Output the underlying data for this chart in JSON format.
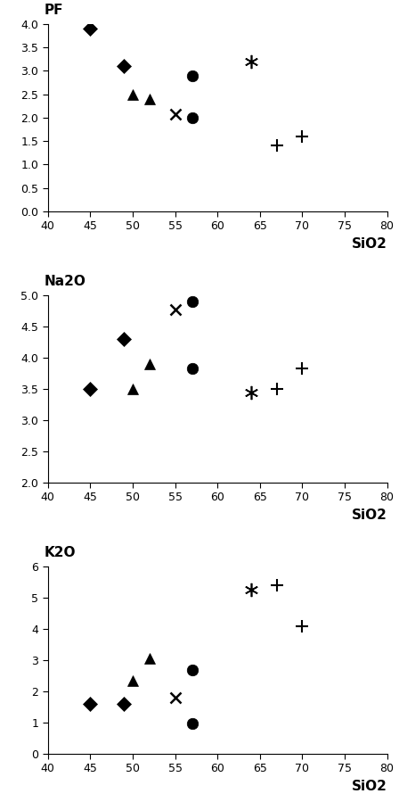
{
  "plots": [
    {
      "ylabel": "PF",
      "xlabel": "SiO2",
      "ylim": [
        0,
        4
      ],
      "xlim": [
        40,
        80
      ],
      "yticks": [
        0,
        0.5,
        1,
        1.5,
        2,
        2.5,
        3,
        3.5,
        4
      ],
      "xticks": [
        40,
        45,
        50,
        55,
        60,
        65,
        70,
        75,
        80
      ],
      "series": [
        {
          "marker": "D",
          "x": [
            45,
            49
          ],
          "y": [
            3.9,
            3.1
          ]
        },
        {
          "marker": "^",
          "x": [
            50,
            52
          ],
          "y": [
            2.5,
            2.4
          ]
        },
        {
          "marker": "o",
          "x": [
            57,
            57
          ],
          "y": [
            2.9,
            2.0
          ]
        },
        {
          "marker": "x",
          "x": [
            55
          ],
          "y": [
            2.07
          ]
        },
        {
          "marker": "ast",
          "x": [
            64
          ],
          "y": [
            3.2
          ]
        },
        {
          "marker": "+",
          "x": [
            67,
            70
          ],
          "y": [
            1.4,
            1.6
          ]
        }
      ]
    },
    {
      "ylabel": "Na2O",
      "xlabel": "SiO2",
      "ylim": [
        2,
        5
      ],
      "xlim": [
        40,
        80
      ],
      "yticks": [
        2,
        2.5,
        3,
        3.5,
        4,
        4.5,
        5
      ],
      "xticks": [
        40,
        45,
        50,
        55,
        60,
        65,
        70,
        75,
        80
      ],
      "series": [
        {
          "marker": "D",
          "x": [
            45,
            49
          ],
          "y": [
            3.5,
            4.3
          ]
        },
        {
          "marker": "^",
          "x": [
            50,
            52
          ],
          "y": [
            3.5,
            3.9
          ]
        },
        {
          "marker": "o",
          "x": [
            57,
            57
          ],
          "y": [
            4.9,
            3.83
          ]
        },
        {
          "marker": "x",
          "x": [
            55
          ],
          "y": [
            4.77
          ]
        },
        {
          "marker": "ast",
          "x": [
            64
          ],
          "y": [
            3.45
          ]
        },
        {
          "marker": "+",
          "x": [
            67,
            70
          ],
          "y": [
            3.5,
            3.83
          ]
        }
      ]
    },
    {
      "ylabel": "K2O",
      "xlabel": "SiO2",
      "ylim": [
        0,
        6
      ],
      "xlim": [
        40,
        80
      ],
      "yticks": [
        0,
        1,
        2,
        3,
        4,
        5,
        6
      ],
      "xticks": [
        40,
        45,
        50,
        55,
        60,
        65,
        70,
        75,
        80
      ],
      "series": [
        {
          "marker": "D",
          "x": [
            45,
            49
          ],
          "y": [
            1.6,
            1.6
          ]
        },
        {
          "marker": "^",
          "x": [
            50,
            52
          ],
          "y": [
            2.35,
            3.07
          ]
        },
        {
          "marker": "o",
          "x": [
            57,
            57
          ],
          "y": [
            2.7,
            0.97
          ]
        },
        {
          "marker": "x",
          "x": [
            55
          ],
          "y": [
            1.8
          ]
        },
        {
          "marker": "ast",
          "x": [
            64
          ],
          "y": [
            5.27
          ]
        },
        {
          "marker": "+",
          "x": [
            67,
            70
          ],
          "y": [
            5.4,
            4.1
          ]
        }
      ]
    }
  ],
  "background_color": "#ffffff",
  "label_fontsize": 11,
  "tick_fontsize": 9
}
